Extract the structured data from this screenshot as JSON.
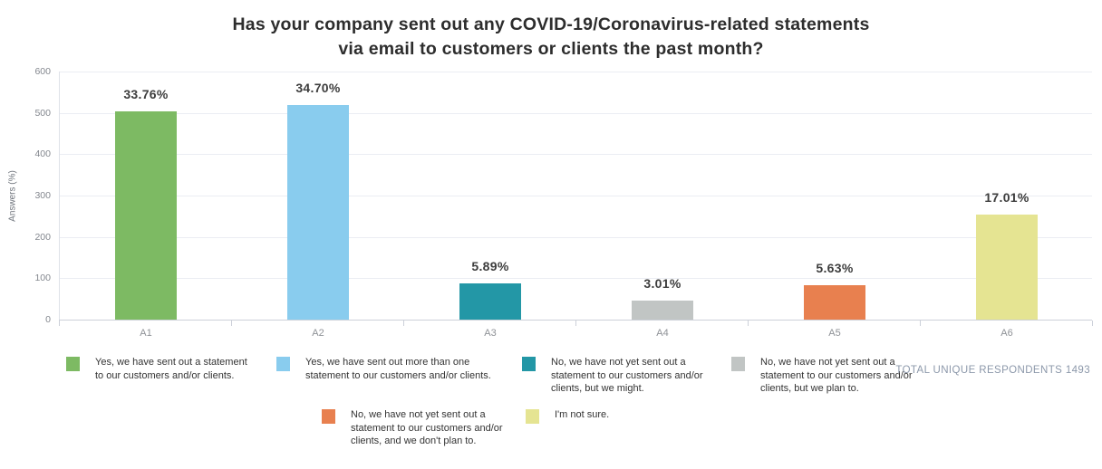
{
  "chart_data": {
    "type": "bar",
    "title": "Has your company sent out any COVID-19/Coronavirus-related statements\nvia email to customers or clients the past month?",
    "xlabel": "",
    "ylabel": "Answers (%)",
    "categories": [
      "A1",
      "A2",
      "A3",
      "A4",
      "A5",
      "A6"
    ],
    "values": [
      504,
      518,
      88,
      45,
      84,
      254
    ],
    "percent_labels": [
      "33.76%",
      "34.70%",
      "5.89%",
      "3.01%",
      "5.63%",
      "17.01%"
    ],
    "bar_colors": [
      "#7dba63",
      "#89ccee",
      "#2397a6",
      "#c1c5c4",
      "#e8804f",
      "#e5e492"
    ],
    "ylim": [
      0,
      600
    ],
    "yticks": [
      0,
      100,
      200,
      300,
      400,
      500,
      600
    ],
    "grid": true,
    "legend_position": "bottom"
  },
  "legend": {
    "items": [
      {
        "color": "#7dba63",
        "label": "Yes, we have sent out a statement\nto our customers and/or clients."
      },
      {
        "color": "#89ccee",
        "label": "Yes, we have sent out more than one\nstatement to our customers and/or clients."
      },
      {
        "color": "#2397a6",
        "label": "No, we have not yet sent out a\nstatement to our customers and/or\nclients, but we might."
      },
      {
        "color": "#c1c5c4",
        "label": "No, we have not yet sent out a\nstatement to our customers and/or\nclients, but we plan to."
      },
      {
        "color": "#e8804f",
        "label": "No, we have not yet sent out a\nstatement to our customers and/or\nclients, and we don't plan to."
      },
      {
        "color": "#e5e492",
        "label": "I'm not sure."
      }
    ]
  },
  "footer": {
    "total_respondents_label": "TOTAL UNIQUE RESPONDENTS",
    "total_respondents_value": "1493"
  }
}
